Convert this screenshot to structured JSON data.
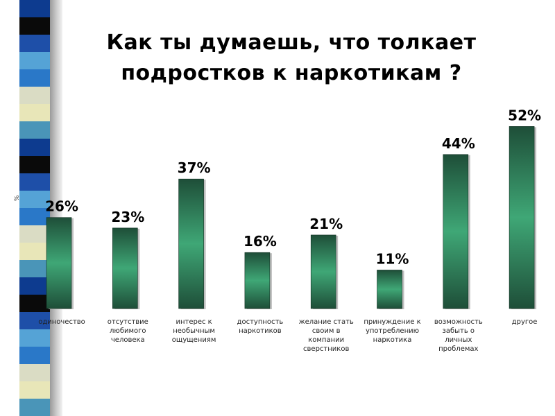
{
  "title": {
    "line1": "Как  ты  думаешь,  что  толкает",
    "line2": "подростков  к  наркотикам ?"
  },
  "colors": {
    "bar_dark": "#1e4e38",
    "bar_light": "#3fa776",
    "stripe_palette": [
      "#0d3b8f",
      "#55a3d6",
      "#e8e6b8",
      "#0a0a0a",
      "#2a78c8",
      "#4a95b8",
      "#1e4fa8",
      "#dadcc4"
    ]
  },
  "chart_data": {
    "type": "bar",
    "ylabel": "%",
    "ylim": [
      0,
      60
    ],
    "categories": [
      "одиночество",
      "отсутствие любимого человека",
      "интерес к необычным ощущениям",
      "доступность наркотиков",
      "желание стать своим в компании сверстников",
      "принуждение к употреблению наркотика",
      "возможность забыть о личных проблемах",
      "другое"
    ],
    "category_lines": [
      [
        "одиночество"
      ],
      [
        "отсутствие",
        "любимого",
        "человека"
      ],
      [
        "интерес к",
        "необычным",
        "ощущениям"
      ],
      [
        "доступность",
        "наркотиков"
      ],
      [
        "желание стать",
        "своим в",
        "компании",
        "сверстников"
      ],
      [
        "принуждение к",
        "употреблению",
        "наркотика"
      ],
      [
        "возможность",
        "забыть о",
        "личных",
        "проблемах"
      ],
      [
        "другое"
      ]
    ],
    "values": [
      26,
      23,
      37,
      16,
      21,
      11,
      44,
      52
    ],
    "value_labels": [
      "26%",
      "23%",
      "37%",
      "16%",
      "21%",
      "11%",
      "44%",
      "52%"
    ],
    "grid": false,
    "legend": "none"
  }
}
